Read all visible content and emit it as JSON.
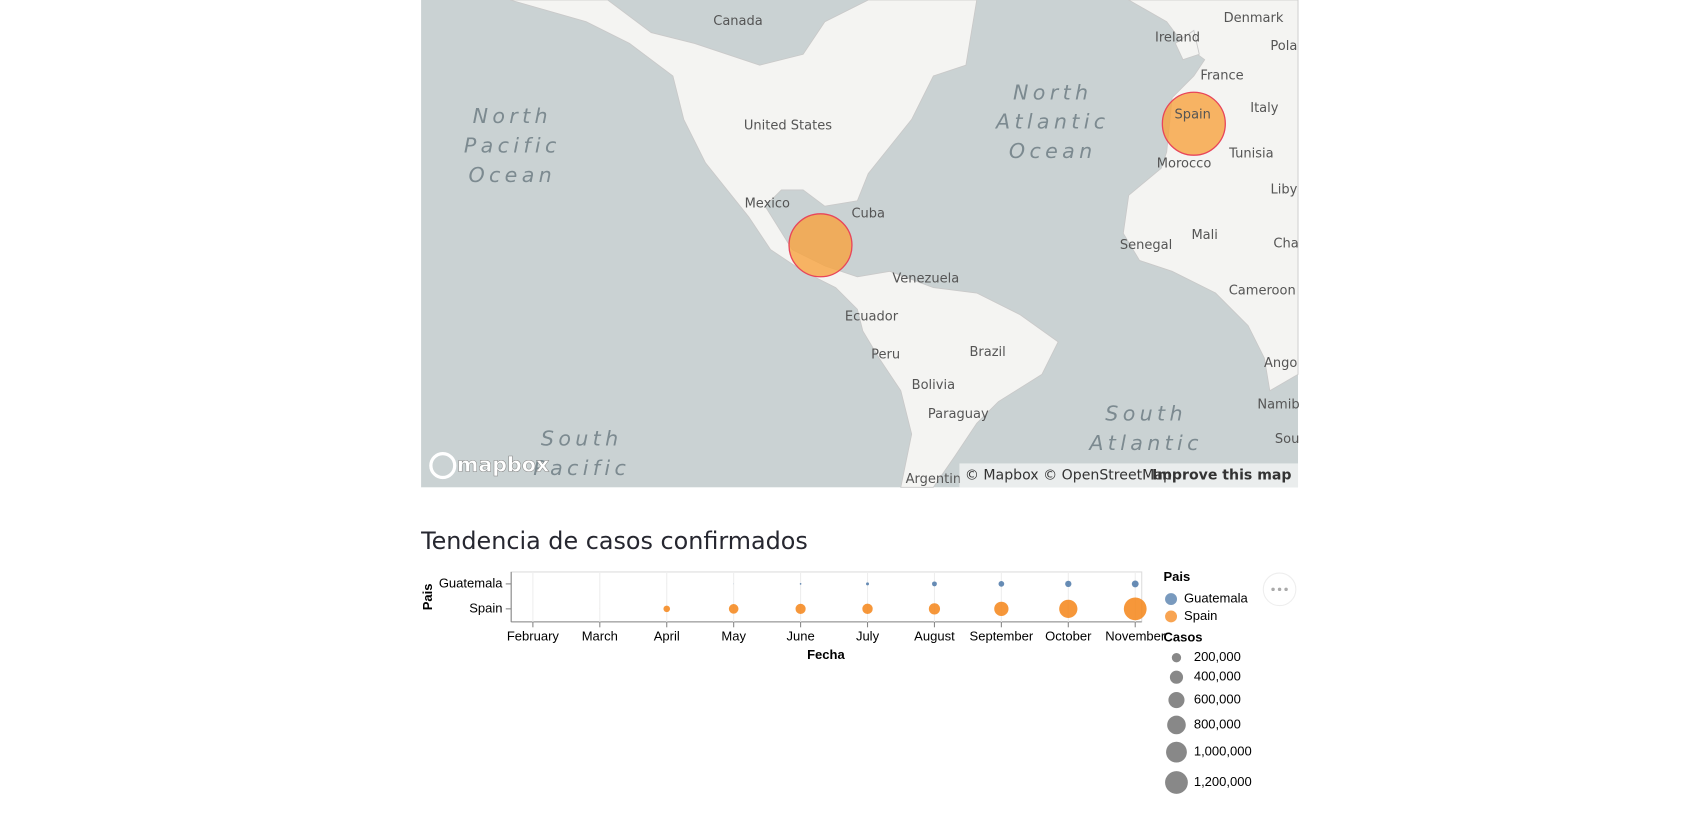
{
  "map": {
    "labels": [
      "Canada",
      "Denmark",
      "Ireland",
      "Pola",
      "France",
      "United States",
      "Italy",
      "Spain",
      "Morocco",
      "Tunisia",
      "Liby",
      "Mexico",
      "Cuba",
      "Mali",
      "Senegal",
      "Cha",
      "Venezuela",
      "Cameroon",
      "Ecuador",
      "Peru",
      "Brazil",
      "Ango",
      "Bolivia",
      "Namib",
      "Paraguay",
      "Sou",
      "Argentin"
    ],
    "oceans": [
      [
        "North",
        "Pacific",
        "Ocean"
      ],
      [
        "North",
        "Atlantic",
        "Ocean"
      ],
      [
        "South",
        "Atlantic"
      ],
      [
        "South",
        "Pacific"
      ]
    ],
    "logo": "mapbox",
    "copyright": "© Mapbox © OpenStreetMap",
    "improve": "Improve this map"
  },
  "chart_data": {
    "type": "strip",
    "title": "Tendencia de casos confirmados",
    "x_label": "Fecha",
    "y_label": "Pais",
    "categories": [
      "February",
      "March",
      "April",
      "May",
      "June",
      "July",
      "August",
      "September",
      "October",
      "November"
    ],
    "y_categories": [
      "Guatemala",
      "Spain"
    ],
    "series": [
      {
        "name": "Guatemala",
        "color": "#4c78a8",
        "values": [
          0,
          0,
          40,
          600,
          6500,
          20000,
          55000,
          75000,
          92000,
          110000
        ]
      },
      {
        "name": "Spain",
        "color": "#f58518",
        "values": [
          0,
          100,
          100000,
          215000,
          240000,
          250000,
          290000,
          470000,
          770000,
          1200000
        ]
      }
    ],
    "legend_title": "Pais",
    "size_legend_title": "Casos",
    "size_legend": [
      {
        "value": 200000,
        "label": "200,000"
      },
      {
        "value": 400000,
        "label": "400,000"
      },
      {
        "value": 600000,
        "label": "600,000"
      },
      {
        "value": 800000,
        "label": "800,000"
      },
      {
        "value": 1000000,
        "label": "1,000,000"
      },
      {
        "value": 1200000,
        "label": "1,200,000"
      }
    ]
  }
}
